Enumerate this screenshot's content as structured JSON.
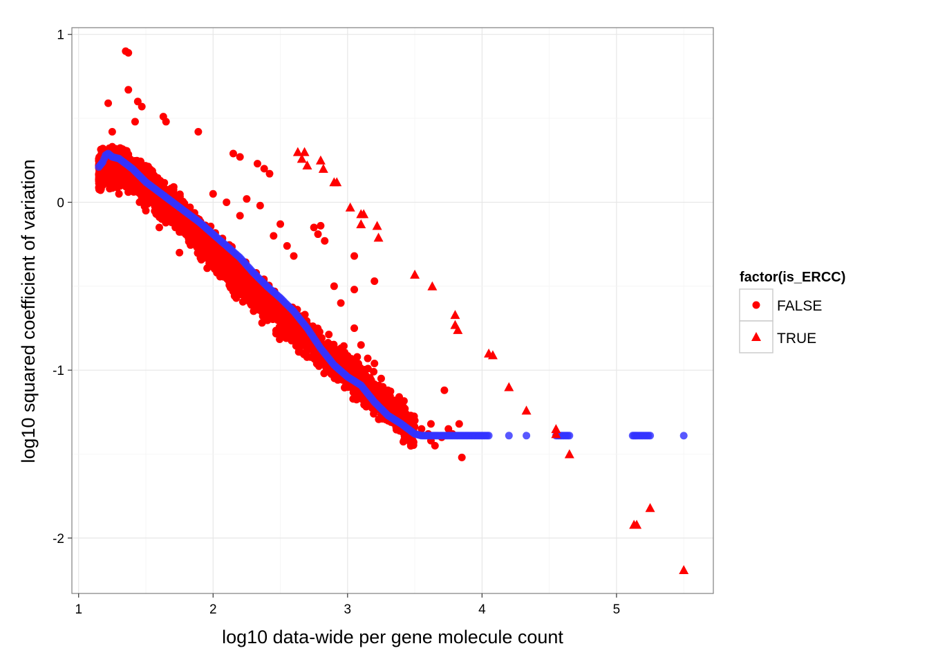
{
  "chart_data": {
    "type": "scatter",
    "xlabel": "log10 data-wide per gene molecule count",
    "ylabel": "log10 squared coefficient of variation",
    "xlim": [
      0.95,
      5.72
    ],
    "ylim": [
      -2.33,
      1.04
    ],
    "x_ticks": [
      1,
      2,
      3,
      4,
      5
    ],
    "x_tick_labels": [
      "1",
      "2",
      "3",
      "4",
      "5"
    ],
    "y_ticks": [
      1,
      0,
      -1,
      -2
    ],
    "y_tick_labels": [
      "1",
      "0",
      "-1",
      "-2"
    ],
    "grid": true,
    "legend": {
      "title": "factor(is_ERCC)",
      "position": "right",
      "entries": [
        {
          "label": "FALSE",
          "shape": "circle",
          "color": "#ff0000"
        },
        {
          "label": "TRUE",
          "shape": "triangle",
          "color": "#ff0000"
        }
      ]
    },
    "colors": {
      "points": "#ff0000",
      "fit": "#3333ff"
    },
    "series": [
      {
        "name": "FALSE",
        "shape": "circle",
        "color": "#ff0000",
        "trend": {
          "description_points": [
            [
              1.15,
              0.18
            ],
            [
              1.3,
              0.22
            ],
            [
              1.5,
              0.1
            ],
            [
              1.75,
              -0.08
            ],
            [
              2.0,
              -0.3
            ],
            [
              2.5,
              -0.68
            ],
            [
              3.0,
              -1.0
            ],
            [
              3.3,
              -1.22
            ],
            [
              3.5,
              -1.38
            ]
          ],
          "band_half_width": 0.13
        },
        "points": [
          [
            1.35,
            0.9
          ],
          [
            1.37,
            0.89
          ],
          [
            1.37,
            0.67
          ],
          [
            1.22,
            0.59
          ],
          [
            1.44,
            0.6
          ],
          [
            1.47,
            0.57
          ],
          [
            1.63,
            0.51
          ],
          [
            1.65,
            0.48
          ],
          [
            1.89,
            0.42
          ],
          [
            2.15,
            0.29
          ],
          [
            2.2,
            0.27
          ],
          [
            2.33,
            0.23
          ],
          [
            2.38,
            0.2
          ],
          [
            2.42,
            0.17
          ],
          [
            2.25,
            0.02
          ],
          [
            2.35,
            -0.02
          ],
          [
            2.0,
            0.05
          ],
          [
            2.1,
            0.0
          ],
          [
            2.2,
            -0.08
          ],
          [
            2.5,
            -0.13
          ],
          [
            2.45,
            -0.2
          ],
          [
            2.55,
            -0.26
          ],
          [
            2.6,
            -0.32
          ],
          [
            2.75,
            -0.15
          ],
          [
            2.78,
            -0.19
          ],
          [
            2.8,
            -0.14
          ],
          [
            2.83,
            -0.23
          ],
          [
            2.9,
            -0.5
          ],
          [
            3.05,
            -0.32
          ],
          [
            3.05,
            -0.52
          ],
          [
            3.2,
            -0.47
          ],
          [
            2.95,
            -0.6
          ],
          [
            3.05,
            -0.75
          ],
          [
            3.1,
            -0.85
          ],
          [
            3.15,
            -0.93
          ],
          [
            3.2,
            -0.96
          ],
          [
            3.25,
            -1.05
          ],
          [
            3.3,
            -1.12
          ],
          [
            3.35,
            -1.18
          ],
          [
            3.38,
            -1.2
          ],
          [
            3.43,
            -1.28
          ],
          [
            3.47,
            -1.27
          ],
          [
            3.5,
            -1.3
          ],
          [
            3.55,
            -1.35
          ],
          [
            3.6,
            -1.38
          ],
          [
            3.62,
            -1.42
          ],
          [
            3.65,
            -1.45
          ],
          [
            3.7,
            -1.4
          ],
          [
            3.75,
            -1.35
          ],
          [
            3.78,
            -1.38
          ],
          [
            3.85,
            -1.52
          ],
          [
            3.83,
            -1.32
          ],
          [
            3.62,
            -1.32
          ],
          [
            3.72,
            -1.12
          ],
          [
            2.15,
            -0.46
          ],
          [
            1.75,
            -0.3
          ],
          [
            1.9,
            -0.22
          ],
          [
            1.6,
            -0.15
          ],
          [
            1.5,
            -0.05
          ],
          [
            1.3,
            0.05
          ],
          [
            1.2,
            0.12
          ],
          [
            1.18,
            0.32
          ],
          [
            1.25,
            0.42
          ],
          [
            1.42,
            0.48
          ]
        ]
      },
      {
        "name": "TRUE",
        "shape": "triangle",
        "color": "#ff0000",
        "points": [
          [
            2.63,
            0.3
          ],
          [
            2.68,
            0.3
          ],
          [
            2.66,
            0.26
          ],
          [
            2.7,
            0.22
          ],
          [
            2.8,
            0.25
          ],
          [
            2.82,
            0.2
          ],
          [
            2.9,
            0.12
          ],
          [
            2.92,
            0.12
          ],
          [
            3.02,
            -0.03
          ],
          [
            3.1,
            -0.07
          ],
          [
            3.12,
            -0.07
          ],
          [
            3.1,
            -0.13
          ],
          [
            3.22,
            -0.14
          ],
          [
            3.23,
            -0.21
          ],
          [
            3.5,
            -0.43
          ],
          [
            3.63,
            -0.5
          ],
          [
            3.8,
            -0.67
          ],
          [
            3.8,
            -0.73
          ],
          [
            3.82,
            -0.76
          ],
          [
            4.05,
            -0.9
          ],
          [
            4.08,
            -0.91
          ],
          [
            4.2,
            -1.1
          ],
          [
            4.33,
            -1.24
          ],
          [
            4.55,
            -1.35
          ],
          [
            4.55,
            -1.38
          ],
          [
            4.65,
            -1.5
          ],
          [
            5.13,
            -1.92
          ],
          [
            5.15,
            -1.92
          ],
          [
            5.25,
            -1.82
          ],
          [
            5.5,
            -2.19
          ]
        ]
      },
      {
        "name": "fit",
        "shape": "circle",
        "color": "#3333ff",
        "points": [
          [
            1.15,
            0.21
          ],
          [
            1.18,
            0.24
          ],
          [
            1.2,
            0.28
          ],
          [
            1.22,
            0.29
          ],
          [
            1.25,
            0.27
          ],
          [
            1.3,
            0.26
          ],
          [
            1.35,
            0.23
          ],
          [
            1.4,
            0.2
          ],
          [
            1.45,
            0.16
          ],
          [
            1.5,
            0.12
          ],
          [
            1.6,
            0.06
          ],
          [
            1.7,
            0.0
          ],
          [
            1.8,
            -0.06
          ],
          [
            1.9,
            -0.12
          ],
          [
            2.0,
            -0.19
          ],
          [
            2.1,
            -0.26
          ],
          [
            2.2,
            -0.33
          ],
          [
            2.3,
            -0.42
          ],
          [
            2.4,
            -0.5
          ],
          [
            2.5,
            -0.57
          ],
          [
            2.6,
            -0.65
          ],
          [
            2.7,
            -0.75
          ],
          [
            2.8,
            -0.87
          ],
          [
            2.9,
            -0.97
          ],
          [
            3.0,
            -1.04
          ],
          [
            3.1,
            -1.09
          ],
          [
            3.2,
            -1.19
          ],
          [
            3.3,
            -1.27
          ],
          [
            3.4,
            -1.32
          ],
          [
            3.5,
            -1.38
          ],
          [
            3.55,
            -1.39
          ],
          [
            3.6,
            -1.39
          ],
          [
            3.65,
            -1.39
          ],
          [
            3.7,
            -1.39
          ],
          [
            3.75,
            -1.39
          ],
          [
            3.8,
            -1.39
          ],
          [
            3.85,
            -1.39
          ],
          [
            3.95,
            -1.39
          ],
          [
            4.0,
            -1.39
          ],
          [
            4.05,
            -1.39
          ],
          [
            4.2,
            -1.39
          ],
          [
            4.33,
            -1.39
          ],
          [
            4.55,
            -1.39
          ],
          [
            4.65,
            -1.39
          ],
          [
            5.12,
            -1.39
          ],
          [
            5.15,
            -1.39
          ],
          [
            5.25,
            -1.39
          ],
          [
            5.5,
            -1.39
          ]
        ]
      }
    ]
  }
}
